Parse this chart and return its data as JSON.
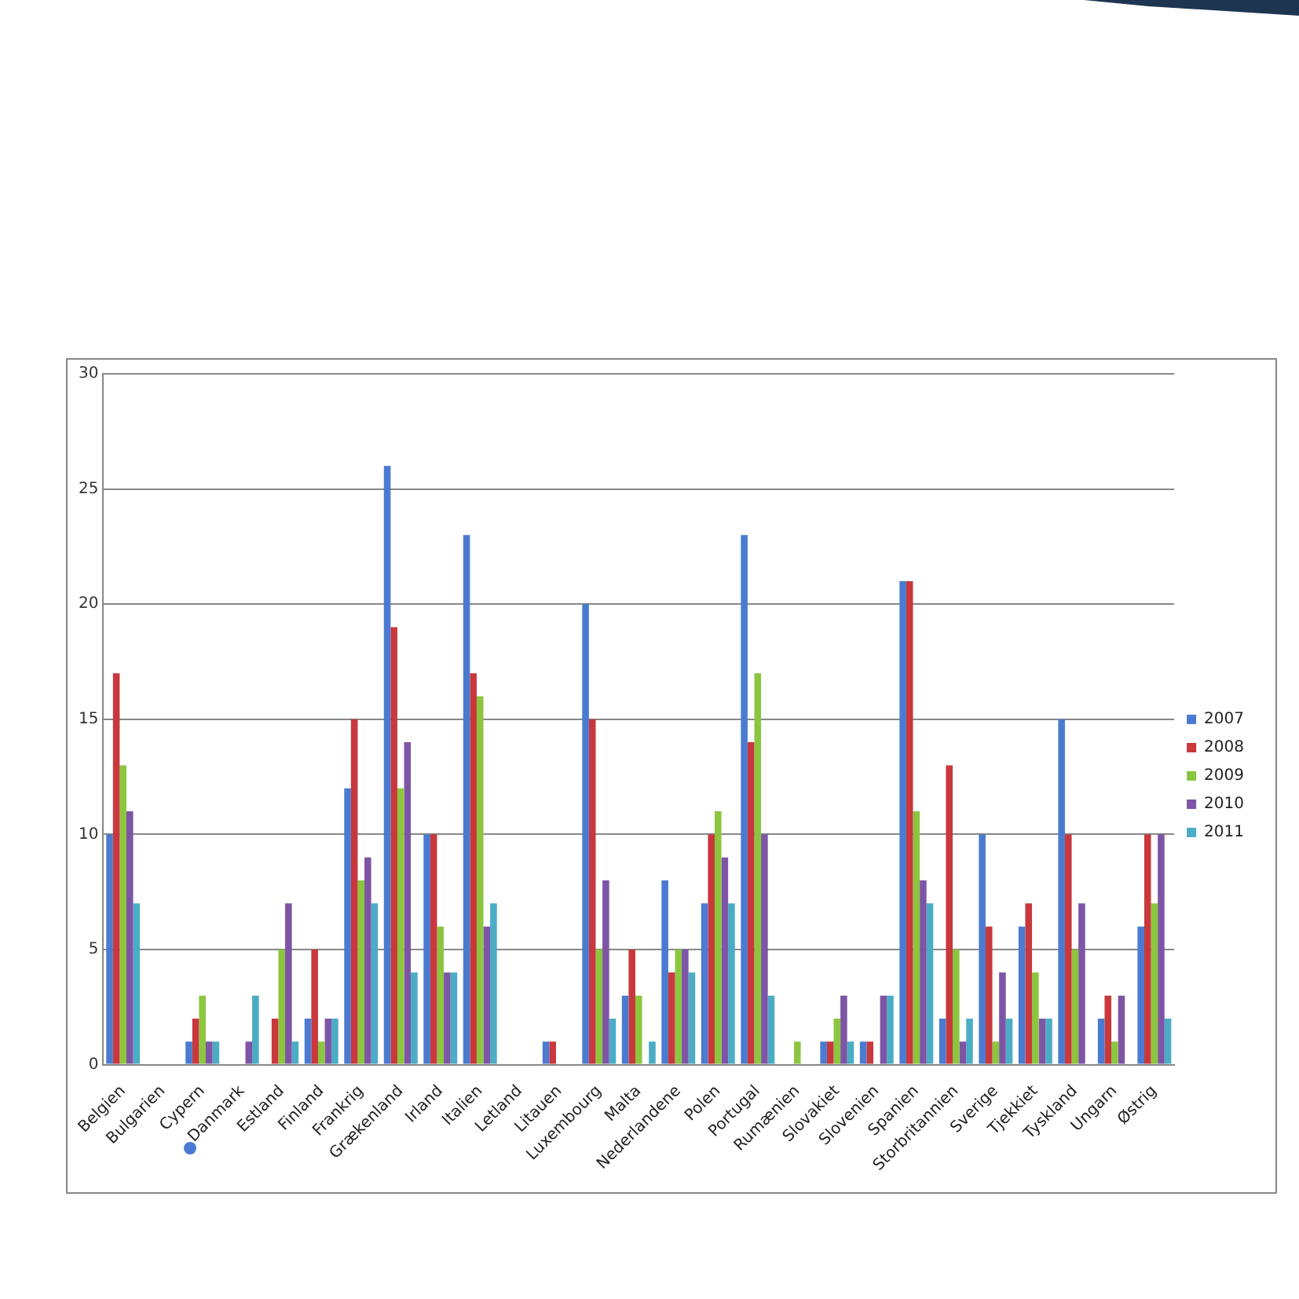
{
  "chart_data": {
    "type": "bar",
    "categories": [
      "Belgien",
      "Bulgarien",
      "Cypern",
      "Danmark",
      "Estland",
      "Finland",
      "Frankrig",
      "Grækenland",
      "Irland",
      "Italien",
      "Letland",
      "Litauen",
      "Luxembourg",
      "Malta",
      "Nederlandene",
      "Polen",
      "Portugal",
      "Rumænien",
      "Slovakiet",
      "Slovenien",
      "Spanien",
      "Storbritannien",
      "Sverige",
      "Tjekkiet",
      "Tyskland",
      "Ungarn",
      "Østrig"
    ],
    "series": [
      {
        "name": "2007",
        "color": "#4a7bd0",
        "values": [
          10,
          0,
          1,
          0,
          0,
          2,
          12,
          26,
          10,
          23,
          0,
          1,
          20,
          3,
          8,
          7,
          23,
          0,
          1,
          1,
          21,
          2,
          10,
          6,
          15,
          2,
          6
        ]
      },
      {
        "name": "2008",
        "color": "#c8383c",
        "values": [
          17,
          0,
          2,
          0,
          2,
          5,
          15,
          19,
          10,
          17,
          0,
          1,
          15,
          5,
          4,
          10,
          14,
          0,
          1,
          1,
          21,
          13,
          6,
          7,
          10,
          3,
          10
        ]
      },
      {
        "name": "2009",
        "color": "#8cc63f",
        "values": [
          13,
          0,
          3,
          0,
          5,
          1,
          8,
          12,
          6,
          16,
          0,
          0,
          5,
          3,
          5,
          11,
          17,
          1,
          2,
          0,
          11,
          5,
          1,
          4,
          5,
          1,
          7
        ]
      },
      {
        "name": "2010",
        "color": "#7e55a6",
        "values": [
          11,
          0,
          1,
          1,
          7,
          2,
          9,
          14,
          4,
          6,
          0,
          0,
          8,
          0,
          5,
          9,
          10,
          0,
          3,
          3,
          8,
          1,
          4,
          2,
          7,
          3,
          10
        ]
      },
      {
        "name": "2011",
        "color": "#4bacc6",
        "values": [
          7,
          0,
          1,
          3,
          1,
          2,
          7,
          4,
          4,
          7,
          0,
          0,
          2,
          1,
          4,
          7,
          3,
          0,
          1,
          3,
          7,
          2,
          2,
          2,
          0,
          0,
          2
        ]
      }
    ],
    "ylim": [
      0,
      30
    ],
    "yticks": [
      0,
      5,
      10,
      15,
      20,
      25,
      30
    ],
    "grid": "y",
    "legend": "right"
  }
}
